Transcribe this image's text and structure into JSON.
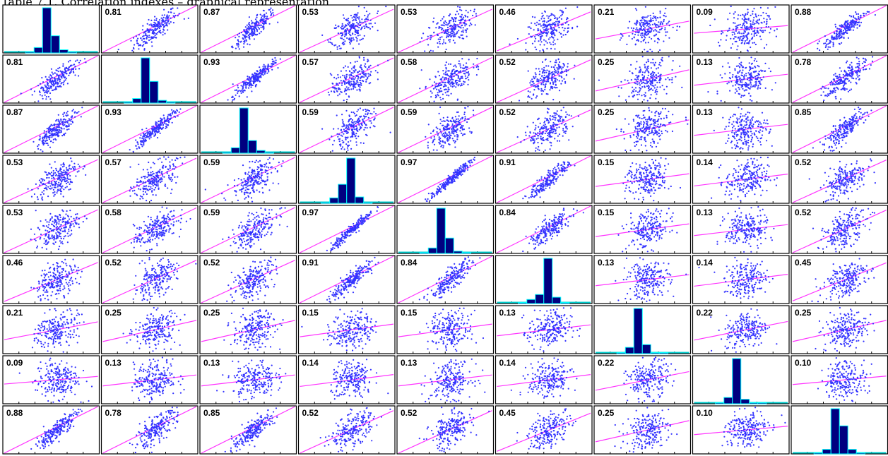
{
  "chart_data": {
    "type": "scatter",
    "title": "Table 7.1. Correlation indexes – graphical representation",
    "matrix_size": 9,
    "correlation_matrix": [
      [
        null,
        0.81,
        0.87,
        0.53,
        0.53,
        0.46,
        0.21,
        0.09,
        0.88
      ],
      [
        0.81,
        null,
        0.93,
        0.57,
        0.58,
        0.52,
        0.25,
        0.13,
        0.78
      ],
      [
        0.87,
        0.93,
        null,
        0.59,
        0.59,
        0.52,
        0.25,
        0.13,
        0.85
      ],
      [
        0.53,
        0.57,
        0.59,
        null,
        0.97,
        0.91,
        0.15,
        0.14,
        0.52
      ],
      [
        0.53,
        0.58,
        0.59,
        0.97,
        null,
        0.84,
        0.15,
        0.13,
        0.52
      ],
      [
        0.46,
        0.52,
        0.52,
        0.91,
        0.84,
        null,
        0.13,
        0.14,
        0.45
      ],
      [
        0.21,
        0.25,
        0.25,
        0.15,
        0.15,
        0.13,
        null,
        0.22,
        0.25
      ],
      [
        0.09,
        0.13,
        0.13,
        0.14,
        0.13,
        0.14,
        0.22,
        null,
        0.1
      ],
      [
        0.88,
        0.78,
        0.85,
        0.52,
        0.52,
        0.45,
        0.25,
        0.1,
        null
      ]
    ],
    "labels": [
      [
        null,
        "0.81",
        "0.87",
        "0.53",
        "0.53",
        "0.46",
        "0.21",
        "0.09",
        "0.88"
      ],
      [
        "0.81",
        null,
        "0.93",
        "0.57",
        "0.58",
        "0.52",
        "0.25",
        "0.13",
        "0.78"
      ],
      [
        "0.87",
        "0.93",
        null,
        "0.59",
        "0.59",
        "0.52",
        "0.25",
        "0.13",
        "0.85"
      ],
      [
        "0.53",
        "0.57",
        "0.59",
        null,
        "0.97",
        "0.91",
        "0.15",
        "0.14",
        "0.52"
      ],
      [
        "0.53",
        "0.58",
        "0.59",
        "0.97",
        null,
        "0.84",
        "0.15",
        "0.13",
        "0.52"
      ],
      [
        "0.46",
        "0.52",
        "0.52",
        "0.91",
        "0.84",
        null,
        "0.13",
        "0.14",
        "0.45"
      ],
      [
        "0.21",
        "0.25",
        "0.25",
        "0.15",
        "0.15",
        "0.13",
        null,
        "0.22",
        "0.25"
      ],
      [
        "0.09",
        "0.13",
        "0.13",
        "0.14",
        "0.13",
        "0.14",
        "0.22",
        null,
        "0.10"
      ],
      [
        "0.88",
        "0.78",
        "0.85",
        "0.52",
        "0.52",
        "0.45",
        "0.25",
        "0.10",
        null
      ]
    ],
    "diagonal_histograms": [
      [
        0.01,
        0.12,
        1.0,
        0.38,
        0.07,
        0.01
      ],
      [
        0.02,
        0.1,
        1.0,
        0.48,
        0.06,
        0.01
      ],
      [
        0.01,
        0.12,
        1.0,
        0.28,
        0.06,
        0.01
      ],
      [
        0.01,
        0.12,
        0.42,
        1.0,
        0.14,
        0.01
      ],
      [
        0.01,
        0.12,
        1.0,
        0.34,
        0.05,
        0.01
      ],
      [
        0.01,
        0.09,
        0.2,
        1.0,
        0.14,
        0.01
      ],
      [
        0.01,
        0.14,
        1.0,
        0.2,
        0.01,
        0.01
      ],
      [
        0.01,
        0.14,
        1.0,
        0.1,
        0.02,
        0.01
      ],
      [
        0.01,
        0.1,
        1.0,
        0.62,
        0.1,
        0.01
      ]
    ],
    "colors": {
      "points": "#3333ff",
      "fit_line": "#ff33ff",
      "bar_fill": "#000080",
      "bar_edge": "#00ffff",
      "baseline": "#00cccc",
      "border": "#000000",
      "label_text": "#000000"
    }
  }
}
